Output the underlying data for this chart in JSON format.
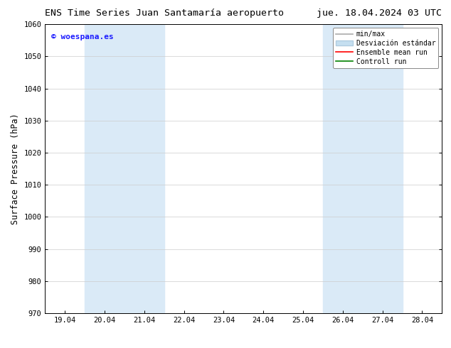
{
  "title_left": "ENS Time Series Juan Santamaría aeropuerto",
  "title_right": "jue. 18.04.2024 03 UTC",
  "ylabel": "Surface Pressure (hPa)",
  "ylim": [
    970,
    1060
  ],
  "yticks": [
    970,
    980,
    990,
    1000,
    1010,
    1020,
    1030,
    1040,
    1050,
    1060
  ],
  "xtick_labels": [
    "19.04",
    "20.04",
    "21.04",
    "22.04",
    "23.04",
    "24.04",
    "25.04",
    "26.04",
    "27.04",
    "28.04"
  ],
  "shaded_regions": [
    {
      "xmin": 1.0,
      "xmax": 3.0,
      "color": "#daeaf7"
    },
    {
      "xmin": 7.0,
      "xmax": 9.0,
      "color": "#daeaf7"
    }
  ],
  "watermark_text": "© woespana.es",
  "watermark_color": "#1a1aff",
  "legend_entries": [
    {
      "label": "min/max",
      "color": "#aaaaaa",
      "linewidth": 1.2,
      "linestyle": "-",
      "type": "line"
    },
    {
      "label": "Desviación estándar",
      "color": "#c5dff0",
      "edgecolor": "#b0cce0",
      "type": "patch"
    },
    {
      "label": "Ensemble mean run",
      "color": "red",
      "linewidth": 1.2,
      "linestyle": "-",
      "type": "line"
    },
    {
      "label": "Controll run",
      "color": "green",
      "linewidth": 1.2,
      "linestyle": "-",
      "type": "line"
    }
  ],
  "background_color": "#ffffff",
  "plot_bg_color": "#ffffff",
  "title_fontsize": 9.5,
  "ylabel_fontsize": 8.5,
  "tick_fontsize": 7.5,
  "legend_fontsize": 7,
  "watermark_fontsize": 8
}
